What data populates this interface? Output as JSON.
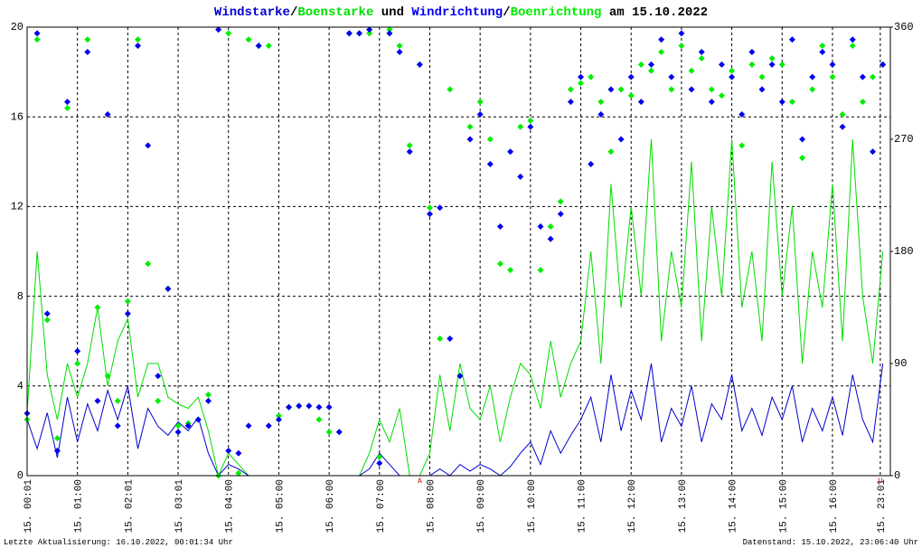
{
  "chart_data": {
    "type": "line",
    "title_joins": [
      "/",
      " und ",
      "/",
      " am 15.10.2022"
    ],
    "x": [
      0,
      0.2,
      0.4,
      0.6,
      0.8,
      1.0,
      1.2,
      1.4,
      1.6,
      1.8,
      2.0,
      2.2,
      2.4,
      2.6,
      2.8,
      3.0,
      3.2,
      3.4,
      3.6,
      3.8,
      4.0,
      4.2,
      4.4,
      4.6,
      4.8,
      5.0,
      5.2,
      5.4,
      5.6,
      5.8,
      6.0,
      6.2,
      6.4,
      6.6,
      6.8,
      7.0,
      7.2,
      7.4,
      7.6,
      7.8,
      8.0,
      8.2,
      8.4,
      8.6,
      8.8,
      9.0,
      9.2,
      9.4,
      9.6,
      9.8,
      10.0,
      10.2,
      10.4,
      10.6,
      10.8,
      11.0,
      11.2,
      11.4,
      11.6,
      11.8,
      12.0,
      12.2,
      12.4,
      12.6,
      12.8,
      13.0,
      13.2,
      13.4,
      13.6,
      13.8,
      14.0,
      14.2,
      14.4,
      14.6,
      14.8,
      15.0,
      15.2,
      15.4,
      15.6,
      15.8,
      16.0,
      16.2,
      16.4,
      16.6,
      16.8,
      17.0
    ],
    "xlim": [
      0,
      17.15
    ],
    "xticks": [
      {
        "value": 0,
        "label": "15. 00:01"
      },
      {
        "value": 1,
        "label": "15. 01:00"
      },
      {
        "value": 2,
        "label": "15. 02:01"
      },
      {
        "value": 3,
        "label": "15. 03:01"
      },
      {
        "value": 4,
        "label": "15. 04:00"
      },
      {
        "value": 5,
        "label": "15. 05:00"
      },
      {
        "value": 6,
        "label": "15. 06:00"
      },
      {
        "value": 7,
        "label": "15. 07:00"
      },
      {
        "value": 8,
        "label": "15. 08:00"
      },
      {
        "value": 9,
        "label": "15. 09:00"
      },
      {
        "value": 10,
        "label": "15. 10:00"
      },
      {
        "value": 11,
        "label": "15. 11:00"
      },
      {
        "value": 12,
        "label": "15. 12:00"
      },
      {
        "value": 13,
        "label": "15. 13:00"
      },
      {
        "value": 14,
        "label": "15. 14:00"
      },
      {
        "value": 15,
        "label": "15. 15:00"
      },
      {
        "value": 16,
        "label": "15. 16:00"
      },
      {
        "value": 16.95,
        "label": "15. 23:01"
      }
    ],
    "ylim": [
      0,
      20
    ],
    "yticks": [
      0,
      4,
      8,
      12,
      16,
      20
    ],
    "y2lim": [
      0,
      360
    ],
    "y2ticks": [
      0,
      90,
      180,
      270,
      360
    ],
    "grid": true,
    "series": [
      {
        "name": "Windstarke",
        "color": "#0000cc",
        "style": "line",
        "values": [
          2.5,
          1.2,
          2.8,
          0.8,
          3.5,
          1.5,
          3.2,
          2.0,
          3.8,
          2.5,
          4.0,
          1.2,
          3.0,
          2.2,
          1.8,
          2.4,
          2.0,
          2.6,
          1.0,
          0,
          0.5,
          0.3,
          0,
          0,
          0,
          0,
          0,
          0,
          0,
          0,
          0,
          0,
          0,
          0,
          0.3,
          1.0,
          0.5,
          0,
          0,
          0,
          0,
          0.3,
          0,
          0.5,
          0.2,
          0.5,
          0.3,
          0,
          0.4,
          1.0,
          1.5,
          0.5,
          2.0,
          1.0,
          1.8,
          2.5,
          3.5,
          1.5,
          4.5,
          2.0,
          3.8,
          2.5,
          5.0,
          1.5,
          3.0,
          2.2,
          4.0,
          1.5,
          3.2,
          2.5,
          4.5,
          2.0,
          3.0,
          1.8,
          3.5,
          2.5,
          4.0,
          1.5,
          3.0,
          2.0,
          3.5,
          1.8,
          4.5,
          2.5,
          1.5,
          5.0
        ]
      },
      {
        "name": "Boenstarke",
        "color": "#00dd00",
        "style": "line",
        "values": [
          2.8,
          10.0,
          4.5,
          2.5,
          5.0,
          3.5,
          5.0,
          7.5,
          4.0,
          6.0,
          7.0,
          3.5,
          5.0,
          5.0,
          3.5,
          3.2,
          3.0,
          3.5,
          2.0,
          0,
          1.0,
          0.5,
          0,
          0,
          0,
          0,
          0,
          0,
          0,
          0,
          0,
          0,
          0,
          0,
          1.0,
          2.5,
          1.5,
          3.0,
          0,
          0,
          1.0,
          4.5,
          2.0,
          5.0,
          3.0,
          2.5,
          4.0,
          1.5,
          3.5,
          5.0,
          4.5,
          3.0,
          6.0,
          3.5,
          5.0,
          6.0,
          10.0,
          5.0,
          13.0,
          7.5,
          12.0,
          8.0,
          15.0,
          6.0,
          10.0,
          7.5,
          14.0,
          6.0,
          12.0,
          8.0,
          15.0,
          7.5,
          10.0,
          6.0,
          14.0,
          8.0,
          12.0,
          5.0,
          10.0,
          7.5,
          13.0,
          6.0,
          15.0,
          8.0,
          5.0,
          10.0
        ]
      },
      {
        "name": "Windrichtung",
        "color": "#0000ee",
        "style": "points",
        "axis": "y2",
        "values": [
          50,
          355,
          130,
          20,
          300,
          100,
          340,
          60,
          290,
          40,
          130,
          345,
          265,
          80,
          150,
          35,
          40,
          45,
          60,
          358,
          20,
          18,
          40,
          345,
          40,
          45,
          55,
          56,
          56,
          55,
          55,
          35,
          355,
          355,
          358,
          10,
          355,
          340,
          260,
          330,
          210,
          215,
          110,
          80,
          270,
          290,
          250,
          200,
          260,
          240,
          280,
          200,
          190,
          210,
          300,
          320,
          250,
          290,
          310,
          270,
          320,
          300,
          330,
          350,
          320,
          355,
          310,
          340,
          300,
          330,
          320,
          290,
          340,
          310,
          330,
          300,
          350,
          270,
          320,
          340,
          330,
          280,
          350,
          320,
          260,
          330
        ]
      },
      {
        "name": "Boenrichtung",
        "color": "#00ee00",
        "style": "points",
        "axis": "y2",
        "values": [
          45,
          350,
          125,
          30,
          295,
          90,
          350,
          135,
          80,
          60,
          140,
          350,
          170,
          60,
          150,
          40,
          42,
          45,
          65,
          0,
          355,
          2,
          350,
          345,
          345,
          48,
          55,
          56,
          56,
          45,
          35,
          35,
          355,
          355,
          355,
          15,
          358,
          345,
          265,
          330,
          215,
          110,
          310,
          80,
          280,
          300,
          270,
          170,
          165,
          280,
          285,
          165,
          200,
          220,
          310,
          315,
          320,
          300,
          260,
          310,
          305,
          330,
          325,
          340,
          310,
          345,
          325,
          335,
          310,
          305,
          325,
          265,
          330,
          320,
          335,
          330,
          300,
          255,
          310,
          345,
          320,
          290,
          345,
          300,
          320,
          330
        ]
      }
    ],
    "annotations": [
      {
        "text": "A",
        "x": 7.8
      },
      {
        "text": "U",
        "x": 16.95
      }
    ],
    "footer_left": "Letzte Aktualisierung: 16.10.2022, 00:01:34 Uhr",
    "footer_right": "Datenstand: 15.10.2022, 23:06:40 Uhr"
  }
}
